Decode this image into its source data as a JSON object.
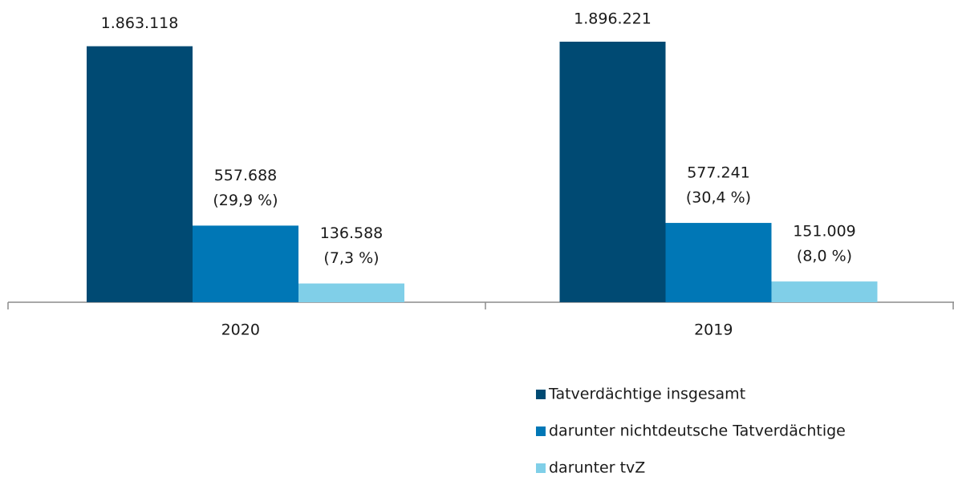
{
  "chart_data": {
    "type": "bar",
    "categories": [
      "2020",
      "2019"
    ],
    "series": [
      {
        "name": "Tatverdächtige insgesamt",
        "color": "#004a73",
        "values": [
          1863118,
          1896221
        ],
        "value_labels": [
          "1.863.118",
          "1.896.221"
        ]
      },
      {
        "name": "darunter nichtdeutsche Tatverdächtige",
        "color": "#0077b6",
        "values": [
          557688,
          577241
        ],
        "value_labels": [
          "557.688",
          "577.241"
        ],
        "share_labels": [
          "(29,9 %)",
          "(30,4 %)"
        ]
      },
      {
        "name": "darunter tvZ",
        "color": "#80cfe8",
        "values": [
          136588,
          151009
        ],
        "value_labels": [
          "136.588",
          "151.009"
        ],
        "share_labels": [
          "(7,3 %)",
          "(8,0 %)"
        ]
      }
    ],
    "legend": "bottom-right"
  }
}
